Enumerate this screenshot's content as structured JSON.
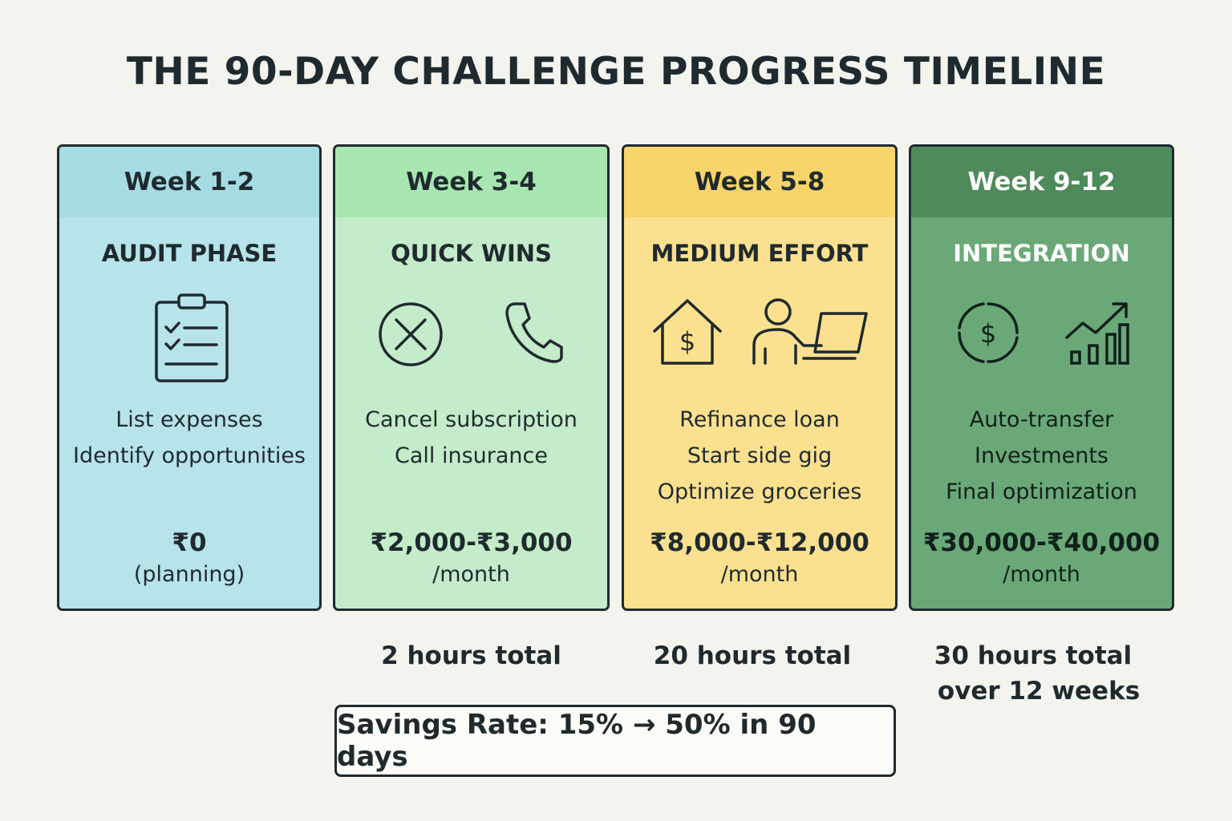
{
  "title": "THE 90-DAY CHALLENGE PROGRESS TIMELINE",
  "colors": {
    "week1": "#b7e3ea",
    "week2": "#c4ecca",
    "week3": "#fbe08f",
    "week4": "#6aa878",
    "outline": "#1f2a2e"
  },
  "phases": [
    {
      "week": "Week 1-2",
      "name": "AUDIT PHASE",
      "icons": [
        "clipboard-checklist-icon"
      ],
      "tasks": [
        "List expenses",
        "Identify opportunities"
      ],
      "amount": "₹0",
      "unit": "(planning)",
      "hours": ""
    },
    {
      "week": "Week 3-4",
      "name": "QUICK WINS",
      "icons": [
        "cancel-circle-icon",
        "phone-icon"
      ],
      "tasks": [
        "Cancel subscription",
        "Call insurance"
      ],
      "amount": "₹2,000-₹3,000",
      "unit": "/month",
      "hours": "2 hours total"
    },
    {
      "week": "Week 5-8",
      "name": "MEDIUM EFFORT",
      "icons": [
        "house-dollar-icon",
        "person-laptop-icon"
      ],
      "tasks": [
        "Refinance loan",
        "Start side gig",
        "Optimize groceries"
      ],
      "amount": "₹8,000-₹12,000",
      "unit": "/month",
      "hours": "20 hours total"
    },
    {
      "week": "Week 9-12",
      "name": "INTEGRATION",
      "icons": [
        "circular-dollar-icon",
        "growth-chart-icon"
      ],
      "tasks": [
        "Auto-transfer",
        "Investments",
        "Final optimization"
      ],
      "amount": "₹30,000-₹40,000",
      "unit": "/month",
      "hours_line1": "30 hours total",
      "hours_line2": "over 12 weeks"
    }
  ],
  "banner": "Savings Rate: 15% → 50% in 90 days"
}
